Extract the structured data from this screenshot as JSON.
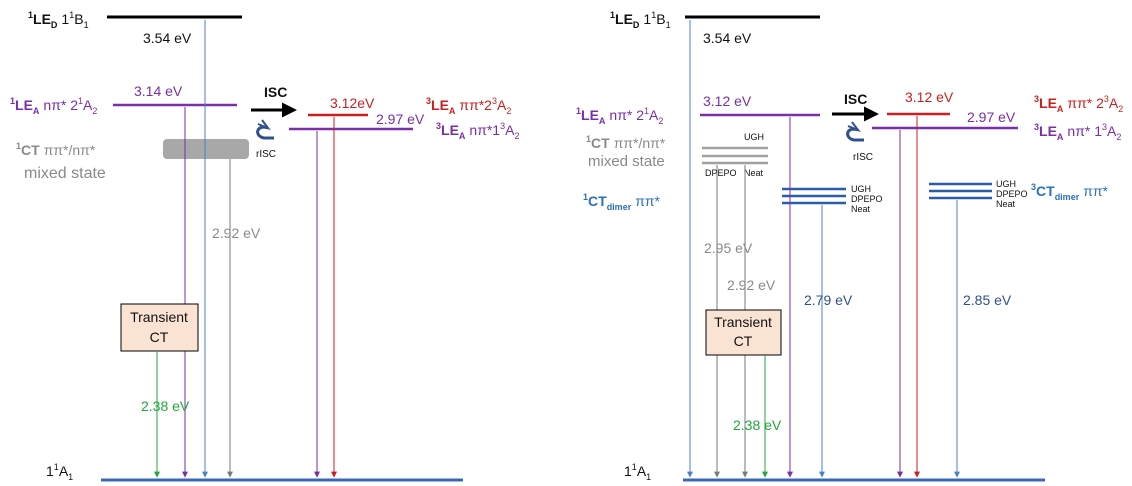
{
  "left": {
    "s_led_label": [
      "LE",
      "D",
      "1",
      "B",
      "1"
    ],
    "s_led_energy": "3.54 eV",
    "s_lea_label": [
      "LE",
      "A",
      "nπ* 2",
      "A",
      "2"
    ],
    "s_lea_energy": "3.14 eV",
    "isc": "ISC",
    "risc": "rISC",
    "t_lea2_energy": "3.12eV",
    "t_lea2_label": [
      "LE",
      "A",
      "ππ*2",
      "A",
      "2"
    ],
    "t_lea1_energy": "2.97 eV",
    "t_lea1_label": [
      "LE",
      "A",
      "nπ*1",
      "A",
      "2"
    ],
    "ct_label": [
      "CT",
      "ππ*/nπ*"
    ],
    "mixed_state": "mixed state",
    "ct_emission": "2.92 eV",
    "transient": [
      "Transient",
      "CT"
    ],
    "transient_emission": "2.38 eV",
    "ground": [
      "1",
      "A",
      "1"
    ]
  },
  "right": {
    "s_led_label": [
      "LE",
      "D",
      "1",
      "B",
      "1"
    ],
    "s_led_energy": "3.54 eV",
    "s_lea_label": [
      "LE",
      "A",
      "nπ* 2",
      "A",
      "2"
    ],
    "s_lea_energy": "3.12 eV",
    "isc": "ISC",
    "risc": "rISC",
    "t_lea2_energy": "3.12 eV",
    "t_lea2_label": [
      "LE",
      "A",
      "ππ* 2",
      "A",
      "2"
    ],
    "t_lea1_energy": "2.97 eV",
    "t_lea1_label": [
      "LE",
      "A",
      "nπ* 1",
      "A",
      "2"
    ],
    "ct_label": [
      "CT",
      "ππ*/nπ*"
    ],
    "mixed_state": "mixed state",
    "ct_hosts": [
      "UGH",
      "DPEPO",
      "Neat"
    ],
    "ct_emission_1": "2.95 eV",
    "ct_emission_2": "2.92 eV",
    "s_ctdimer_label": [
      "CT",
      "dimer",
      "ππ*"
    ],
    "s_dimer_hosts": [
      "UGH",
      "DPEPO",
      "Neat"
    ],
    "s_dimer_emission": "2.79 eV",
    "t_ctdimer_label": [
      "CT",
      "dimer",
      "ππ*"
    ],
    "t_dimer_hosts": [
      "UGH",
      "DPEPO",
      "Neat"
    ],
    "t_dimer_emission": "2.85 eV",
    "transient": [
      "Transient",
      "CT"
    ],
    "transient_emission": "2.38 eV",
    "ground": [
      "1",
      "A",
      "1"
    ]
  },
  "colors": {
    "black": "#111111",
    "purple": "#7a2ea8",
    "red": "#cc1e1e",
    "gray": "#8a8a8a",
    "green": "#1fa83a",
    "blue": "#2a6fc0",
    "navy": "#2f4f8f",
    "ground": "#3a67b5",
    "transient_fill": "#fbe3d3"
  }
}
